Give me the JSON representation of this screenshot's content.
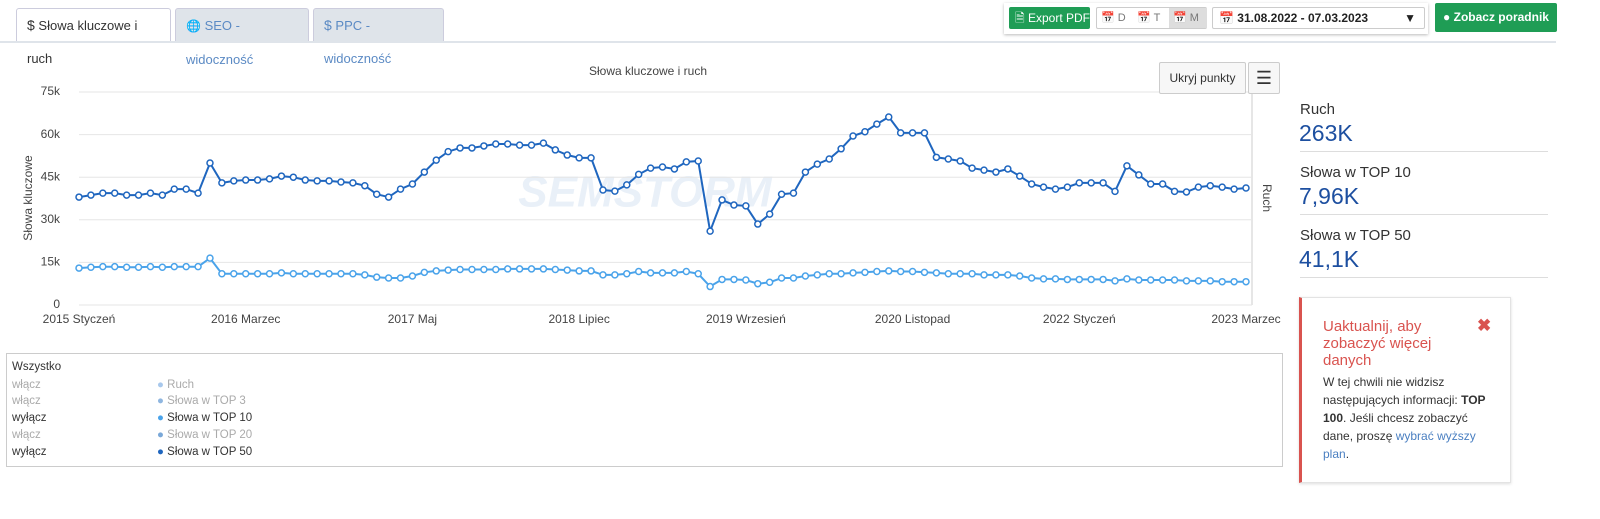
{
  "tabs": [
    "Słowa kluczowe i ruch",
    "SEO - widoczność",
    "PPC - widoczność"
  ],
  "toolbar": {
    "export": "Export PDF",
    "periods": [
      "D",
      "T",
      "M"
    ],
    "date_range": "31.08.2022 - 07.03.2023",
    "guide": "Zobacz poradnik"
  },
  "chart_buttons": {
    "hide_points": "Ukryj punkty"
  },
  "chart_data": {
    "type": "line",
    "title": "Słowa kluczowe i ruch",
    "y_label": "Słowa kluczowe",
    "y2_label": "Ruch",
    "watermark": "SEMSTORM",
    "grid": true,
    "categories": [
      "2015 Styczeń",
      null,
      null,
      null,
      null,
      null,
      null,
      null,
      null,
      null,
      null,
      null,
      null,
      null,
      "2016 Marzec",
      null,
      null,
      null,
      null,
      null,
      null,
      null,
      null,
      null,
      null,
      null,
      null,
      null,
      "2017 Maj",
      null,
      null,
      null,
      null,
      null,
      null,
      null,
      null,
      null,
      null,
      null,
      null,
      null,
      "2018 Lipiec",
      null,
      null,
      null,
      null,
      null,
      null,
      null,
      null,
      null,
      null,
      null,
      null,
      null,
      "2019 Wrzesień",
      null,
      null,
      null,
      null,
      null,
      null,
      null,
      null,
      null,
      null,
      null,
      null,
      null,
      "2020 Listopad",
      null,
      null,
      null,
      null,
      null,
      null,
      null,
      null,
      null,
      null,
      null,
      null,
      null,
      "2022 Styczeń",
      null,
      null,
      null,
      null,
      null,
      null,
      null,
      null,
      null,
      null,
      null,
      null,
      null,
      "2023 Marzec"
    ],
    "ylim": [
      0,
      75000
    ],
    "yticks": [
      0,
      {
        "value": 15000,
        "label": "15k"
      },
      {
        "value": 30000,
        "label": "30k"
      },
      {
        "value": 45000,
        "label": "45k"
      },
      {
        "value": 60000,
        "label": "60k"
      },
      {
        "value": 75000,
        "label": "75k"
      }
    ],
    "series": [
      {
        "name": "Słowa w TOP 50",
        "color": "#1f66bf",
        "values": [
          38000,
          38700,
          39400,
          39400,
          38700,
          38700,
          39400,
          38700,
          40800,
          40800,
          39400,
          50000,
          43000,
          43700,
          44000,
          44000,
          44400,
          45400,
          45000,
          44000,
          43700,
          43700,
          43300,
          43000,
          42000,
          39000,
          38000,
          40800,
          42600,
          46800,
          51000,
          54000,
          55300,
          55300,
          56000,
          56700,
          56700,
          56300,
          56300,
          57000,
          54600,
          52800,
          51800,
          51800,
          40500,
          40100,
          42300,
          46000,
          48200,
          48600,
          47900,
          50400,
          50700,
          26000,
          37000,
          35200,
          34900,
          28500,
          32000,
          39000,
          39400,
          46800,
          49600,
          51400,
          55000,
          59500,
          61000,
          63700,
          66200,
          60600,
          60600,
          60600,
          52000,
          51400,
          50700,
          48200,
          47500,
          46800,
          47900,
          45400,
          42600,
          41500,
          40800,
          41500,
          43000,
          43000,
          43000,
          40000,
          49000,
          45800,
          42600,
          42600,
          40000,
          39800,
          41500,
          42000,
          41500,
          40800,
          41200
        ]
      },
      {
        "name": "Słowa w TOP 10",
        "color": "#4aa3ea",
        "values": [
          13000,
          13300,
          13500,
          13500,
          13300,
          13300,
          13500,
          13300,
          13500,
          13500,
          13500,
          16500,
          11000,
          11000,
          11000,
          11000,
          11000,
          11300,
          11000,
          11000,
          11000,
          11000,
          11000,
          11000,
          10600,
          9800,
          9500,
          9500,
          10200,
          11500,
          12000,
          12300,
          12500,
          12500,
          12500,
          12500,
          12700,
          12700,
          12700,
          12700,
          12500,
          12300,
          12000,
          12000,
          10600,
          10600,
          11000,
          11800,
          11300,
          11300,
          11300,
          11800,
          11000,
          6500,
          9000,
          9000,
          8800,
          7500,
          8000,
          9500,
          9500,
          10200,
          10600,
          11000,
          11000,
          11300,
          11500,
          11800,
          12000,
          11800,
          11800,
          11500,
          11300,
          11000,
          11000,
          11000,
          10600,
          10600,
          10600,
          10200,
          9500,
          9200,
          9200,
          9000,
          9000,
          9000,
          9000,
          8500,
          9200,
          8800,
          8800,
          8800,
          8800,
          8500,
          8500,
          8500,
          8200,
          8200,
          8200
        ]
      }
    ]
  },
  "legend_panel": {
    "all": "Wszystko",
    "rows": [
      {
        "toggle": "włącz",
        "label": "Ruch"
      },
      {
        "toggle": "włącz",
        "label": "Słowa w TOP 3"
      },
      {
        "toggle": "wyłącz"
      },
      {
        "toggle": "włącz",
        "label": "Słowa w TOP 20"
      },
      {
        "toggle": "wyłącz"
      }
    ]
  },
  "stats": [
    {
      "label": "Ruch",
      "value": "263K"
    },
    {
      "label": "Słowa w TOP 10",
      "value": "7,96K"
    },
    {
      "label": "Słowa w TOP 50",
      "value": "41,1K"
    }
  ],
  "notice": {
    "title": "Uaktualnij, aby zobaczyć więcej danych",
    "text1": "W tej chwili nie widzisz następujących informacji: ",
    "bold": "TOP 100",
    "text2": ". Jeśli chcesz zobaczyć dane, proszę ",
    "link": "wybrać wyższy plan",
    "text3": "."
  }
}
